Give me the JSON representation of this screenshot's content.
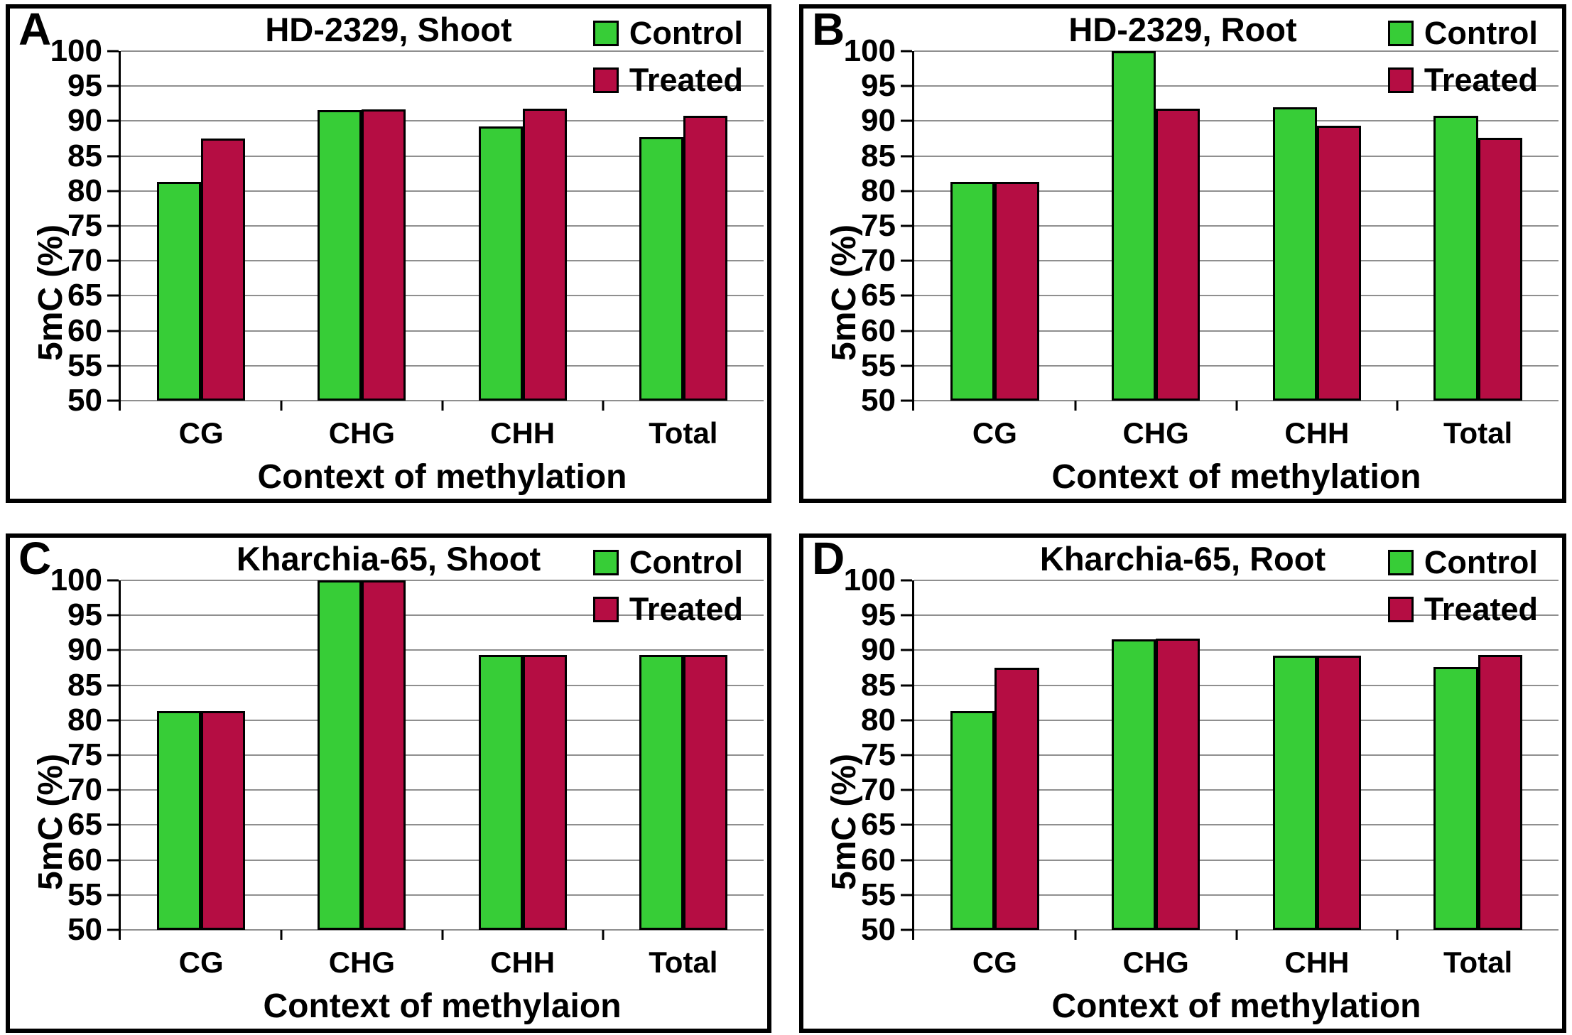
{
  "colors": {
    "control": "#37cd37",
    "treated": "#b50d43",
    "gridline": "#8f8f8f",
    "axis": "#000000",
    "text": "#000000",
    "background": "#ffffff"
  },
  "chart_data": [
    {
      "panel_label": "A",
      "type": "bar",
      "title": "HD-2329, Shoot",
      "xlabel": "Context of methylation",
      "ylabel": "5mC (%)",
      "categories": [
        "CG",
        "CHG",
        "CHH",
        "Total"
      ],
      "series": [
        {
          "name": "Control",
          "color": "#37cd37",
          "values": [
            81.3,
            91.6,
            89.2,
            87.7
          ]
        },
        {
          "name": "Treated",
          "color": "#b50d43",
          "values": [
            87.5,
            91.7,
            91.8,
            90.8
          ]
        }
      ],
      "ylim": [
        50,
        100
      ],
      "yticks": [
        100,
        95,
        90,
        85,
        80,
        75,
        70,
        65,
        60,
        55,
        50
      ],
      "grid": true,
      "legend_position": "top-right"
    },
    {
      "panel_label": "B",
      "type": "bar",
      "title": "HD-2329, Root",
      "xlabel": "Context of methylation",
      "ylabel": "5mC (%)",
      "categories": [
        "CG",
        "CHG",
        "CHH",
        "Total"
      ],
      "series": [
        {
          "name": "Control",
          "color": "#37cd37",
          "values": [
            81.3,
            100.0,
            92.0,
            90.8
          ]
        },
        {
          "name": "Treated",
          "color": "#b50d43",
          "values": [
            81.3,
            91.8,
            89.3,
            87.6
          ]
        }
      ],
      "ylim": [
        50,
        100
      ],
      "yticks": [
        100,
        95,
        90,
        85,
        80,
        75,
        70,
        65,
        60,
        55,
        50
      ],
      "grid": true,
      "legend_position": "top-right"
    },
    {
      "panel_label": "C",
      "type": "bar",
      "title": "Kharchia-65, Shoot",
      "xlabel": "Context of methylaion",
      "ylabel": "5mC (%)",
      "categories": [
        "CG",
        "CHG",
        "CHH",
        "Total"
      ],
      "series": [
        {
          "name": "Control",
          "color": "#37cd37",
          "values": [
            81.3,
            100.0,
            89.3,
            89.3
          ]
        },
        {
          "name": "Treated",
          "color": "#b50d43",
          "values": [
            81.3,
            100.0,
            89.3,
            89.3
          ]
        }
      ],
      "ylim": [
        50,
        100
      ],
      "yticks": [
        100,
        95,
        90,
        85,
        80,
        75,
        70,
        65,
        60,
        55,
        50
      ],
      "grid": true,
      "legend_position": "top-right"
    },
    {
      "panel_label": "D",
      "type": "bar",
      "title": "Kharchia-65, Root",
      "xlabel": "Context of methylation",
      "ylabel": "5mC (%)",
      "categories": [
        "CG",
        "CHG",
        "CHH",
        "Total"
      ],
      "series": [
        {
          "name": "Control",
          "color": "#37cd37",
          "values": [
            81.3,
            91.6,
            89.2,
            87.6
          ]
        },
        {
          "name": "Treated",
          "color": "#b50d43",
          "values": [
            87.5,
            91.7,
            89.2,
            89.3
          ]
        }
      ],
      "ylim": [
        50,
        100
      ],
      "yticks": [
        100,
        95,
        90,
        85,
        80,
        75,
        70,
        65,
        60,
        55,
        50
      ],
      "grid": true,
      "legend_position": "top-right"
    }
  ]
}
